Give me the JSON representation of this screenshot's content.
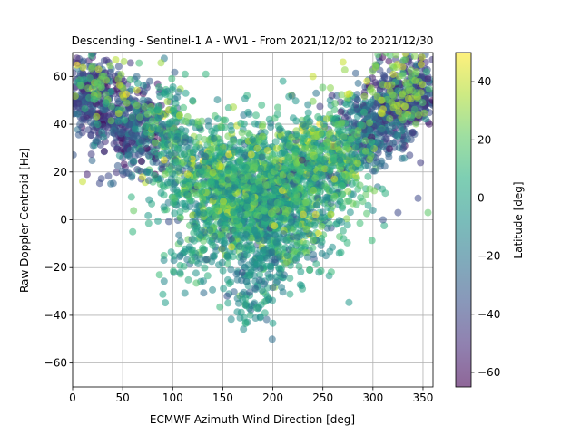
{
  "chart_data": {
    "type": "scatter",
    "title": "Descending - Sentinel-1 A - WV1 - From 2021/12/02 to 2021/12/30",
    "xlabel": "ECMWF Azimuth Wind Direction [deg]",
    "ylabel": "Raw Doppler Centroid [Hz]",
    "xlim": [
      0,
      360
    ],
    "ylim": [
      -70,
      70
    ],
    "xticks": [
      0,
      50,
      100,
      150,
      200,
      250,
      300,
      350
    ],
    "yticks": [
      -60,
      -40,
      -20,
      0,
      20,
      40,
      60
    ],
    "grid": true,
    "marker_alpha": 0.55,
    "colorbar": {
      "label": "Latitude [deg]",
      "range": [
        -65,
        50
      ],
      "ticks": [
        -60,
        -40,
        -20,
        0,
        20,
        40
      ],
      "colormap": "viridis"
    },
    "point_clusters": [
      {
        "x": 190,
        "y": 8,
        "sx": 38,
        "sy": 14,
        "lat_mean": 2,
        "lat_sd": 16,
        "count": 1500
      },
      {
        "x": 140,
        "y": 18,
        "sx": 30,
        "sy": 12,
        "lat_mean": 10,
        "lat_sd": 18,
        "count": 450
      },
      {
        "x": 235,
        "y": 22,
        "sx": 22,
        "sy": 12,
        "lat_mean": 8,
        "lat_sd": 20,
        "count": 350
      },
      {
        "x": 185,
        "y": -22,
        "sx": 22,
        "sy": 8,
        "lat_mean": -10,
        "lat_sd": 10,
        "count": 140
      },
      {
        "x": 20,
        "y": 52,
        "sx": 18,
        "sy": 9,
        "lat_mean": -40,
        "lat_sd": 10,
        "count": 360
      },
      {
        "x": 60,
        "y": 38,
        "sx": 18,
        "sy": 9,
        "lat_mean": -35,
        "lat_sd": 14,
        "count": 320
      },
      {
        "x": 95,
        "y": 38,
        "sx": 14,
        "sy": 10,
        "lat_mean": 5,
        "lat_sd": 20,
        "count": 160
      },
      {
        "x": 335,
        "y": 52,
        "sx": 18,
        "sy": 9,
        "lat_mean": -40,
        "lat_sd": 12,
        "count": 360
      },
      {
        "x": 295,
        "y": 38,
        "sx": 18,
        "sy": 9,
        "lat_mean": -30,
        "lat_sd": 15,
        "count": 320
      },
      {
        "x": 270,
        "y": 28,
        "sx": 15,
        "sy": 10,
        "lat_mean": 15,
        "lat_sd": 15,
        "count": 180
      },
      {
        "x": 330,
        "y": 55,
        "sx": 20,
        "sy": 8,
        "lat_mean": 30,
        "lat_sd": 10,
        "count": 100
      },
      {
        "x": 30,
        "y": 55,
        "sx": 22,
        "sy": 8,
        "lat_mean": 25,
        "lat_sd": 12,
        "count": 80
      },
      {
        "x": 120,
        "y": -15,
        "sx": 15,
        "sy": 8,
        "lat_mean": -5,
        "lat_sd": 12,
        "count": 60
      },
      {
        "x": 180,
        "y": -38,
        "sx": 10,
        "sy": 4,
        "lat_mean": -5,
        "lat_sd": 8,
        "count": 25
      }
    ],
    "outlier_points": [
      {
        "x": 210,
        "y": 58,
        "lat": 0
      },
      {
        "x": 240,
        "y": 60,
        "lat": 40
      },
      {
        "x": 270,
        "y": 66,
        "lat": 40
      },
      {
        "x": 133,
        "y": 61,
        "lat": 10
      },
      {
        "x": 113,
        "y": 53,
        "lat": 0
      },
      {
        "x": 10,
        "y": 16,
        "lat": 40
      },
      {
        "x": 60,
        "y": -5,
        "lat": 10
      },
      {
        "x": 355,
        "y": 3,
        "lat": 20
      },
      {
        "x": 345,
        "y": 9,
        "lat": -40
      },
      {
        "x": 310,
        "y": 0,
        "lat": -35
      },
      {
        "x": 325,
        "y": 3,
        "lat": -40
      },
      {
        "x": 300,
        "y": 4,
        "lat": -10
      }
    ]
  }
}
